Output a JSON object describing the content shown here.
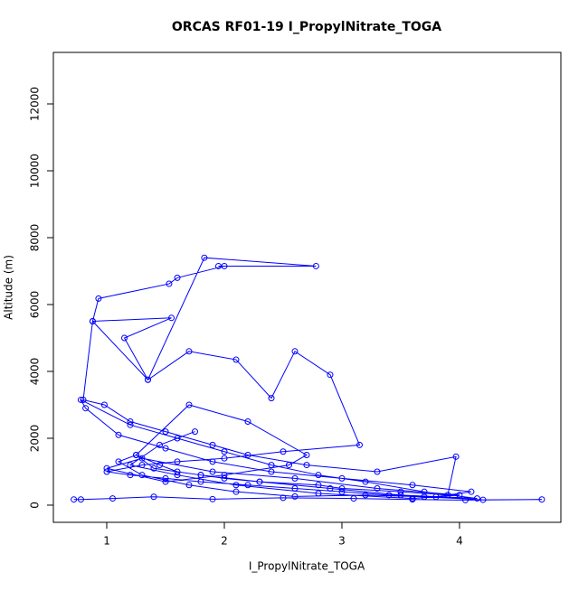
{
  "chart_data": {
    "type": "line",
    "title": "ORCAS RF01-19 I_PropylNitrate_TOGA",
    "x_label": "I_PropylNitrate_TOGA",
    "y_label": "Altitude (m)",
    "x": [
      0.72,
      0.78,
      1.05,
      1.4,
      1.9,
      2.5,
      3.1,
      3.6,
      4.05,
      4.7,
      4.2,
      3.7,
      3.2,
      2.6,
      2.1,
      1.7,
      1.3,
      1.1,
      1.25,
      1.45,
      1.6,
      1.8,
      2.0,
      2.3,
      2.8,
      3.0,
      3.5,
      3.9,
      3.97,
      3.3,
      2.7,
      2.2,
      1.9,
      1.5,
      1.2,
      0.98,
      0.8,
      0.88,
      1.35,
      1.83,
      2.78,
      1.95,
      2.0,
      1.6,
      1.53,
      0.93,
      0.88,
      1.55,
      1.15,
      1.35,
      1.7,
      2.1,
      2.4,
      2.6,
      2.9,
      3.15,
      2.5,
      2.0,
      1.6,
      1.3,
      1.0,
      1.2,
      1.5,
      1.8,
      2.2,
      2.6,
      3.0,
      3.4,
      3.8,
      4.1,
      3.6,
      3.0,
      2.4,
      1.9,
      1.5,
      1.1,
      0.82,
      0.78,
      1.2,
      1.6,
      2.0,
      2.4,
      2.8,
      3.2,
      3.7,
      4.15,
      3.5,
      2.9,
      2.3,
      1.8,
      1.4,
      1.25,
      1.7,
      2.2,
      2.7,
      2.55,
      2.0,
      1.5,
      1.0,
      1.3,
      1.9,
      2.6,
      3.3,
      4.0,
      3.6,
      2.8,
      2.1,
      1.6,
      1.2,
      1.45,
      1.75
    ],
    "series": [
      {
        "color": "#0000ff",
        "values": [
          170,
          170,
          200,
          250,
          180,
          220,
          200,
          170,
          150,
          170,
          160,
          250,
          300,
          260,
          400,
          600,
          900,
          1300,
          1500,
          1200,
          1000,
          900,
          800,
          700,
          600,
          500,
          400,
          300,
          1450,
          1000,
          1200,
          1500,
          1800,
          2200,
          2500,
          3000,
          3150,
          5500,
          3750,
          7400,
          7150,
          7150,
          7150,
          6800,
          6620,
          6180,
          5500,
          5600,
          5000,
          3750,
          4600,
          4350,
          3200,
          4600,
          3900,
          1800,
          1600,
          1400,
          1300,
          1200,
          1000,
          900,
          800,
          700,
          600,
          500,
          400,
          300,
          250,
          400,
          600,
          800,
          1000,
          1300,
          1700,
          2100,
          2900,
          3150,
          2400,
          2000,
          1600,
          1200,
          900,
          700,
          400,
          200,
          300,
          500,
          700,
          900,
          1100,
          1500,
          3000,
          2500,
          1500,
          1200,
          900,
          700,
          1100,
          1400,
          1000,
          800,
          500,
          300,
          200,
          350,
          600,
          900,
          1200,
          1800,
          2200
        ]
      }
    ],
    "xlim": [
      0.546,
      4.862
    ],
    "ylim": [
      -514,
      13541
    ],
    "xticks": [
      1,
      2,
      3,
      4
    ],
    "yticks": [
      0,
      2000,
      4000,
      6000,
      8000,
      10000,
      12000
    ]
  }
}
